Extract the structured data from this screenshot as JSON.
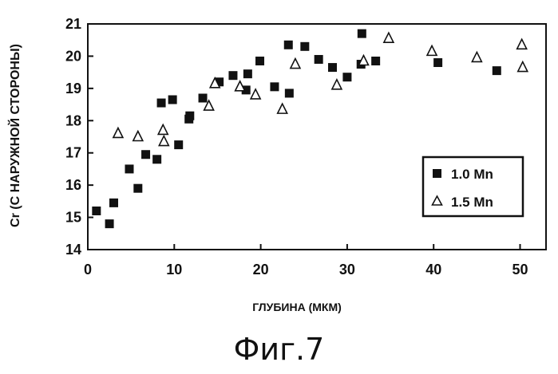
{
  "chart_data": {
    "type": "scatter",
    "xlabel": "ГЛУБИНА (МКМ)",
    "ylabel": "Cr (С НАРУЖНОЙ СТОРОНЫ)",
    "xlim": [
      0,
      53
    ],
    "ylim": [
      14,
      21
    ],
    "x_ticks": [
      "0",
      "10",
      "20",
      "30",
      "40",
      "50"
    ],
    "y_ticks": [
      "14",
      "15",
      "16",
      "17",
      "18",
      "19",
      "20",
      "21"
    ],
    "legend_position": "right",
    "grid": false,
    "series": [
      {
        "name": "1.0 Mn",
        "marker": "filled-square",
        "points": [
          [
            1.0,
            15.2
          ],
          [
            2.5,
            14.8
          ],
          [
            3.0,
            15.45
          ],
          [
            4.8,
            16.5
          ],
          [
            5.8,
            15.9
          ],
          [
            6.7,
            16.95
          ],
          [
            8.0,
            16.8
          ],
          [
            8.5,
            18.55
          ],
          [
            9.8,
            18.65
          ],
          [
            10.5,
            17.25
          ],
          [
            11.7,
            18.05
          ],
          [
            11.8,
            18.15
          ],
          [
            13.3,
            18.7
          ],
          [
            15.2,
            19.2
          ],
          [
            16.8,
            19.4
          ],
          [
            18.3,
            18.95
          ],
          [
            18.5,
            19.45
          ],
          [
            19.9,
            19.85
          ],
          [
            21.6,
            19.05
          ],
          [
            23.2,
            20.35
          ],
          [
            23.3,
            18.85
          ],
          [
            25.1,
            20.3
          ],
          [
            26.7,
            19.9
          ],
          [
            28.3,
            19.65
          ],
          [
            30.0,
            19.35
          ],
          [
            31.6,
            19.75
          ],
          [
            31.7,
            20.7
          ],
          [
            33.3,
            19.85
          ],
          [
            40.5,
            19.8
          ],
          [
            47.3,
            19.55
          ]
        ]
      },
      {
        "name": "1.5 Mn",
        "marker": "open-triangle",
        "points": [
          [
            3.5,
            17.6
          ],
          [
            5.8,
            17.5
          ],
          [
            8.7,
            17.7
          ],
          [
            8.8,
            17.35
          ],
          [
            14.0,
            18.45
          ],
          [
            14.7,
            19.15
          ],
          [
            17.6,
            19.05
          ],
          [
            19.4,
            18.8
          ],
          [
            22.5,
            18.35
          ],
          [
            24.0,
            19.75
          ],
          [
            28.8,
            19.1
          ],
          [
            31.9,
            19.85
          ],
          [
            34.8,
            20.55
          ],
          [
            39.8,
            20.15
          ],
          [
            45.0,
            19.95
          ],
          [
            50.2,
            20.35
          ],
          [
            50.3,
            19.65
          ]
        ]
      }
    ]
  },
  "caption": "Фиг.7"
}
